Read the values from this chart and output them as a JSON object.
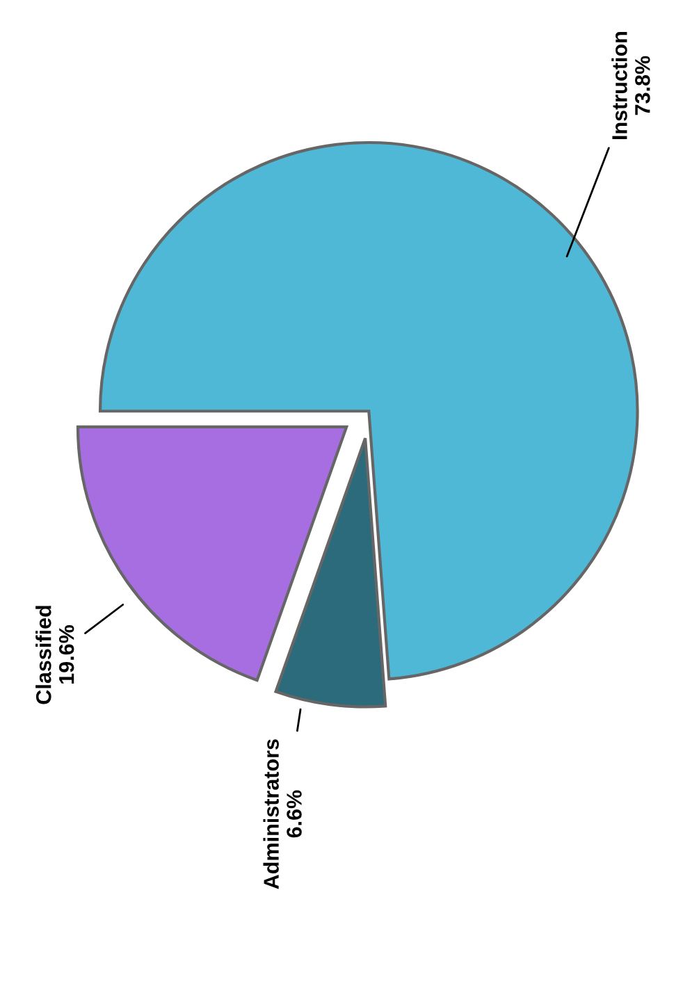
{
  "chart_data": {
    "type": "pie",
    "categories": [
      "Instruction",
      "Administrators",
      "Classified"
    ],
    "values": [
      73.8,
      6.6,
      19.6
    ],
    "colors": [
      "#4fb8d6",
      "#2b6b7b",
      "#a66ee0"
    ],
    "value_labels": [
      "73.8%",
      "6.6%",
      "19.6%"
    ]
  }
}
